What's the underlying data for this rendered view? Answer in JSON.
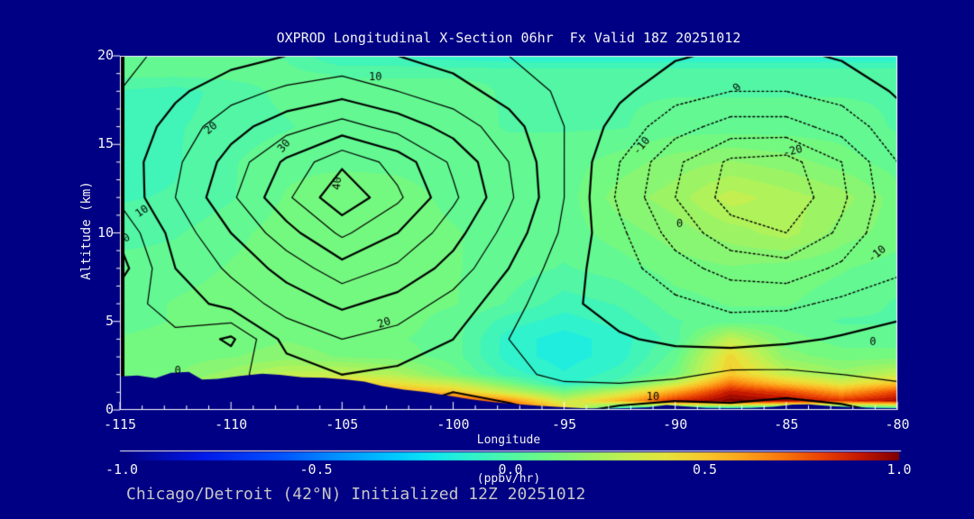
{
  "title": "OXPROD Longitudinal X-Section 06hr  Fx Valid 18Z 20251012",
  "caption": "Chicago/Detroit (42°N) Initialized 12Z 20251012",
  "colors": {
    "background": "#000085",
    "frame": "#FFFFFF",
    "text": "#F2F2F2",
    "caption_text": "#C6C6C6",
    "contour_line": "#000000",
    "terrain": "#000085"
  },
  "chart_data": {
    "type": "contour",
    "title": "OXPROD Longitudinal X-Section 06hr  Fx Valid 18Z 20251012",
    "caption": "Chicago/Detroit (42°N) Initialized 12Z 20251012",
    "xlabel": "Longitude",
    "ylabel": "Altitude (km)",
    "xlim": [
      -115,
      -80
    ],
    "ylim": [
      0,
      20
    ],
    "x_ticks": [
      -115,
      -110,
      -105,
      -100,
      -95,
      -90,
      -85,
      -80
    ],
    "x_minor_step": 1,
    "y_ticks": [
      0,
      5,
      10,
      15,
      20
    ],
    "y_minor_step": 1,
    "grid": false,
    "colorbar": {
      "label": "(ppbv/hr)",
      "range": [
        -1.0,
        1.0
      ],
      "ticks": [
        "-1.0",
        "-0.5",
        "0.0",
        "0.5",
        "1.0"
      ],
      "stops": [
        [
          -1.0,
          "#000080"
        ],
        [
          -0.8,
          "#0018E8"
        ],
        [
          -0.6,
          "#0050FF"
        ],
        [
          -0.45,
          "#0090FF"
        ],
        [
          -0.3,
          "#00C8FF"
        ],
        [
          -0.2,
          "#10E8F0"
        ],
        [
          -0.1,
          "#30F2CC"
        ],
        [
          0.0,
          "#52F6A4"
        ],
        [
          0.1,
          "#74F980"
        ],
        [
          0.2,
          "#9CF464"
        ],
        [
          0.3,
          "#C4EF50"
        ],
        [
          0.4,
          "#E6E43C"
        ],
        [
          0.5,
          "#F8C82C"
        ],
        [
          0.6,
          "#FCA41C"
        ],
        [
          0.7,
          "#F8780C"
        ],
        [
          0.8,
          "#EA4404"
        ],
        [
          0.9,
          "#C41800"
        ],
        [
          1.0,
          "#800000"
        ]
      ],
      "quantize_step": 0.05
    },
    "filled_field": {
      "units": "ppbv/hr",
      "lons": [
        -115,
        -112.5,
        -110,
        -107.5,
        -105,
        -102.5,
        -100,
        -97.5,
        -95,
        -92.5,
        -90,
        -87.5,
        -85,
        -82.5,
        -80
      ],
      "alts": [
        0,
        0.5,
        1,
        1.5,
        2,
        3,
        4,
        5,
        6,
        8,
        10,
        12,
        14,
        16,
        18,
        19,
        20
      ],
      "values": [
        [
          0.2,
          0.3,
          0.5,
          0.65,
          0.75,
          0.9,
          1.0,
          0.9,
          0.5,
          -0.2,
          -0.25,
          -0.3,
          -0.35,
          -0.3,
          -0.25
        ],
        [
          0.2,
          0.3,
          0.5,
          0.6,
          0.7,
          0.8,
          0.85,
          0.65,
          0.3,
          0.55,
          0.85,
          1.0,
          0.95,
          0.85,
          0.95
        ],
        [
          0.15,
          0.2,
          0.4,
          0.55,
          0.6,
          0.6,
          0.5,
          0.3,
          0.1,
          0.3,
          0.6,
          0.9,
          0.8,
          0.6,
          0.8
        ],
        [
          0.12,
          0.15,
          0.3,
          0.45,
          0.5,
          0.4,
          0.3,
          0.1,
          -0.1,
          0.0,
          0.3,
          0.7,
          0.5,
          0.35,
          0.5
        ],
        [
          0.1,
          0.12,
          0.2,
          0.3,
          0.3,
          0.25,
          0.1,
          -0.05,
          -0.12,
          -0.05,
          0.1,
          0.5,
          0.3,
          0.2,
          0.3
        ],
        [
          0.08,
          0.1,
          0.12,
          0.15,
          0.12,
          0.1,
          0.05,
          -0.1,
          -0.15,
          -0.1,
          0.05,
          0.45,
          0.15,
          0.1,
          0.1
        ],
        [
          0.08,
          0.1,
          0.1,
          0.12,
          0.1,
          0.08,
          0.05,
          -0.1,
          -0.15,
          -0.1,
          0.0,
          0.3,
          0.1,
          0.05,
          0.05
        ],
        [
          0.05,
          0.08,
          0.1,
          0.1,
          0.1,
          0.1,
          0.05,
          -0.05,
          -0.1,
          -0.05,
          0.02,
          0.05,
          0.05,
          0.02,
          0.02
        ],
        [
          0.05,
          0.08,
          0.1,
          0.1,
          0.12,
          0.1,
          0.08,
          0.02,
          -0.05,
          -0.02,
          0.05,
          0.08,
          0.08,
          0.05,
          0.02
        ],
        [
          0.05,
          0.05,
          0.08,
          0.1,
          0.12,
          0.1,
          0.08,
          0.05,
          0.02,
          0.05,
          0.1,
          0.12,
          0.1,
          0.08,
          0.05
        ],
        [
          0.0,
          0.02,
          0.06,
          0.1,
          0.12,
          0.1,
          0.08,
          0.05,
          0.05,
          0.1,
          0.15,
          0.2,
          0.25,
          0.15,
          0.1
        ],
        [
          -0.03,
          -0.02,
          0.02,
          0.08,
          0.12,
          0.1,
          0.06,
          0.05,
          0.05,
          0.15,
          0.2,
          0.3,
          0.25,
          0.2,
          0.1
        ],
        [
          -0.05,
          -0.03,
          0.02,
          0.06,
          0.06,
          0.06,
          0.05,
          0.05,
          0.05,
          0.1,
          0.15,
          0.18,
          0.15,
          0.1,
          0.05
        ],
        [
          -0.05,
          -0.03,
          0.0,
          0.02,
          0.05,
          0.05,
          0.05,
          0.02,
          0.02,
          0.02,
          0.05,
          0.05,
          0.05,
          0.05,
          0.02
        ],
        [
          -0.03,
          -0.05,
          0.0,
          0.04,
          0.04,
          0.04,
          0.04,
          0.02,
          0.02,
          0.02,
          0.02,
          0.02,
          0.02,
          0.02,
          0.02
        ],
        [
          0.04,
          0.04,
          0.04,
          0.04,
          0.02,
          0.02,
          0.02,
          0.02,
          0.02,
          0.02,
          0.02,
          0.02,
          0.02,
          0.02,
          0.02
        ],
        [
          0.03,
          0.03,
          0.03,
          0.02,
          -0.08,
          -0.08,
          -0.1,
          -0.12,
          -0.12,
          -0.12,
          -0.12,
          -0.12,
          -0.12,
          -0.12,
          -0.12
        ]
      ]
    },
    "line_contours": {
      "style": "solid positive, dotted negative",
      "levels_min": -25,
      "levels_max": 40,
      "levels_interval": 5,
      "lons": [
        -115,
        -112.5,
        -110,
        -107.5,
        -105,
        -102.5,
        -100,
        -97.5,
        -95,
        -92.5,
        -90,
        -87.5,
        -85,
        -82.5,
        -80
      ],
      "alts": [
        0,
        2,
        4,
        6,
        8,
        10,
        12,
        14,
        16,
        18,
        20
      ],
      "values": [
        [
          1,
          1,
          2,
          4,
          8,
          10,
          12,
          11,
          9,
          11,
          12,
          11,
          12,
          11,
          9
        ],
        [
          1,
          2,
          4,
          7,
          10,
          9,
          8,
          6,
          4,
          3,
          4,
          6,
          6,
          5,
          4
        ],
        [
          2,
          4,
          -1,
          12,
          15,
          13,
          10,
          5,
          1,
          0.5,
          -1,
          -2,
          -1,
          0.5,
          2
        ],
        [
          3,
          7,
          12,
          17,
          21,
          18,
          13,
          7,
          1,
          -2,
          -4,
          -6,
          -6,
          -4,
          -2
        ],
        [
          -2,
          10,
          16,
          22,
          28,
          24,
          18,
          10,
          2,
          -3,
          -8,
          -12,
          -13,
          -9,
          -6
        ],
        [
          1,
          12,
          20,
          28,
          36,
          30,
          22,
          13,
          4,
          -4,
          -12,
          -18,
          -20,
          -14,
          -5
        ],
        [
          6,
          15,
          24,
          34,
          44,
          36,
          26,
          16,
          5,
          -6,
          -15,
          -22,
          -24,
          -16,
          -6
        ],
        [
          7,
          14,
          22,
          31,
          39,
          33,
          24,
          15,
          5,
          -5,
          -14,
          -21,
          -22,
          -15,
          -5
        ],
        [
          6,
          12,
          18,
          23,
          27,
          23,
          18,
          12,
          5,
          -2,
          -8,
          -12,
          -12,
          -8,
          -2
        ],
        [
          5,
          9,
          13,
          16,
          18,
          15,
          12,
          8,
          4,
          1,
          -3,
          -5,
          -5,
          -3,
          0.5
        ],
        [
          4,
          6,
          8,
          10,
          11,
          10,
          8,
          5,
          2,
          1,
          0.5,
          -1,
          -1,
          0.5,
          0.5
        ]
      ],
      "labels": [
        {
          "text": "10",
          "lon": -114.0,
          "alt": 11.2,
          "rot": -35
        },
        {
          "text": "0",
          "lon": -114.7,
          "alt": 9.7,
          "rot": -30
        },
        {
          "text": "0",
          "lon": -112.4,
          "alt": 2.2,
          "rot": 0
        },
        {
          "text": "20",
          "lon": -110.9,
          "alt": 15.9,
          "rot": -40
        },
        {
          "text": "30",
          "lon": -107.6,
          "alt": 14.9,
          "rot": -50
        },
        {
          "text": "40",
          "lon": -105.2,
          "alt": 12.8,
          "rot": -85
        },
        {
          "text": "10",
          "lon": -103.5,
          "alt": 18.8,
          "rot": 0
        },
        {
          "text": "0",
          "lon": -87.2,
          "alt": 18.2,
          "rot": -45
        },
        {
          "text": "-10",
          "lon": -91.5,
          "alt": 14.9,
          "rot": -50
        },
        {
          "text": "-20",
          "lon": -84.7,
          "alt": 14.6,
          "rot": -15
        },
        {
          "text": "0",
          "lon": -89.8,
          "alt": 10.5,
          "rot": 0
        },
        {
          "text": "-10",
          "lon": -80.9,
          "alt": 8.8,
          "rot": -40
        },
        {
          "text": "0",
          "lon": -81.1,
          "alt": 3.8,
          "rot": 0
        },
        {
          "text": "20",
          "lon": -103.1,
          "alt": 4.9,
          "rot": -20
        },
        {
          "text": "10",
          "lon": -91.0,
          "alt": 0.7,
          "rot": 0
        }
      ]
    },
    "terrain_profile": [
      [
        -115,
        1.9
      ],
      [
        -114.2,
        1.95
      ],
      [
        -113.4,
        1.8
      ],
      [
        -112.7,
        2.1
      ],
      [
        -111.9,
        2.15
      ],
      [
        -111.3,
        1.72
      ],
      [
        -110.6,
        1.75
      ],
      [
        -109.6,
        1.92
      ],
      [
        -108.6,
        2.05
      ],
      [
        -107.8,
        1.98
      ],
      [
        -106.8,
        1.85
      ],
      [
        -105.8,
        1.82
      ],
      [
        -104.8,
        1.72
      ],
      [
        -104,
        1.6
      ],
      [
        -103.2,
        1.35
      ],
      [
        -102.2,
        1.15
      ],
      [
        -101.2,
        1.0
      ],
      [
        -100.2,
        0.8
      ],
      [
        -99.2,
        0.6
      ],
      [
        -98.2,
        0.45
      ],
      [
        -97.2,
        0.33
      ],
      [
        -96.2,
        0.24
      ],
      [
        -95.2,
        0.16
      ],
      [
        -94.2,
        0.1
      ],
      [
        -93.2,
        0.08
      ],
      [
        -92.2,
        0.1
      ],
      [
        -91.2,
        0.15
      ],
      [
        -90.4,
        0.28
      ],
      [
        -89.6,
        0.2
      ],
      [
        -88.6,
        0.12
      ],
      [
        -87.6,
        0.1
      ],
      [
        -86.6,
        0.12
      ],
      [
        -85.6,
        0.18
      ],
      [
        -84.7,
        0.3
      ],
      [
        -84,
        0.32
      ],
      [
        -83,
        0.22
      ],
      [
        -82,
        0.15
      ],
      [
        -81,
        0.12
      ],
      [
        -80,
        0.1
      ]
    ]
  }
}
